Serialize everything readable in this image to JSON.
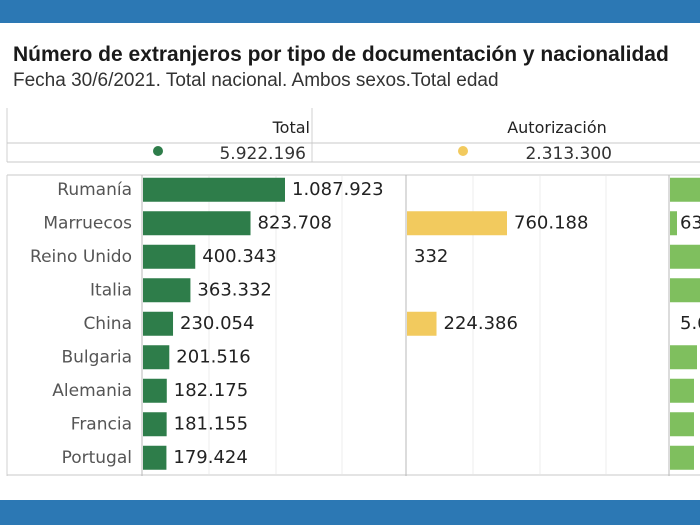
{
  "title": "Número de extranjeros por tipo de documentación y nacionalidad",
  "subtitle": "Fecha 30/6/2021. Total nacional. Ambos sexos.Total edad",
  "colors": {
    "band": "#2c78b4",
    "total": "#2e7d4a",
    "autorizacion": "#f2ca5e",
    "third": "#7fbf5e"
  },
  "chart_data": {
    "type": "bar",
    "categories": [
      "Rumanía",
      "Marruecos",
      "Reino Unido",
      "Italia",
      "China",
      "Bulgaria",
      "Alemania",
      "Francia",
      "Portugal"
    ],
    "series": [
      {
        "name": "Total",
        "overall": "5.922.196",
        "values": [
          1087923,
          823708,
          400343,
          363332,
          230054,
          201516,
          182175,
          181155,
          179424
        ],
        "labels": [
          "1.087.923",
          "823.708",
          "400.343",
          "363.332",
          "230.054",
          "201.516",
          "182.175",
          "181.155",
          "179.424"
        ]
      },
      {
        "name": "Autorización",
        "overall": "2.313.300",
        "values": [
          null,
          760188,
          332,
          null,
          224386,
          null,
          null,
          null,
          null
        ],
        "labels": [
          "",
          "760.188",
          "332",
          "",
          "224.386",
          "",
          "",
          "",
          ""
        ]
      },
      {
        "name": "",
        "overall": "",
        "values": [
          null,
          null,
          null,
          null,
          null,
          null,
          null,
          null,
          null
        ],
        "labels": [
          "",
          "63",
          "",
          "",
          "5.6",
          "",
          "",
          "",
          ""
        ]
      }
    ],
    "grid": true,
    "legend": "top"
  }
}
